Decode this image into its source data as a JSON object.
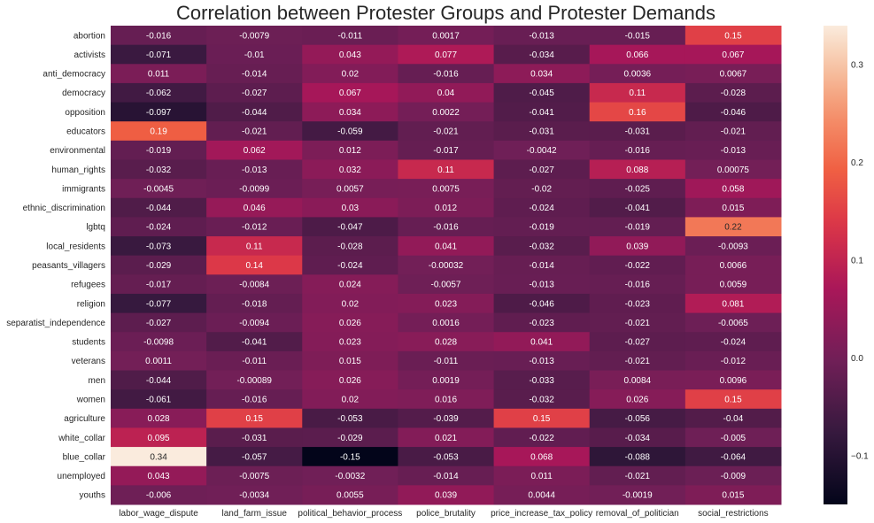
{
  "chart_data": {
    "type": "heatmap",
    "title": "Correlation between Protester Groups and Protester Demands",
    "rows": [
      "abortion",
      "activists",
      "anti_democracy",
      "democracy",
      "opposition",
      "educators",
      "environmental",
      "human_rights",
      "immigrants",
      "ethnic_discrimination",
      "lgbtq",
      "local_residents",
      "peasants_villagers",
      "refugees",
      "religion",
      "separatist_independence",
      "students",
      "veterans",
      "men",
      "women",
      "agriculture",
      "white_collar",
      "blue_collar",
      "unemployed",
      "youths"
    ],
    "columns": [
      "labor_wage_dispute",
      "land_farm_issue",
      "political_behavior_process",
      "police_brutality",
      "price_increase_tax_policy",
      "removal_of_politician",
      "social_restrictions"
    ],
    "values": [
      [
        "-0.016",
        "-0.0079",
        "-0.011",
        "0.0017",
        "-0.013",
        "-0.015",
        "0.15"
      ],
      [
        "-0.071",
        "-0.01",
        "0.043",
        "0.077",
        "-0.034",
        "0.066",
        "0.067"
      ],
      [
        "0.011",
        "-0.014",
        "0.02",
        "-0.016",
        "0.034",
        "0.0036",
        "0.0067"
      ],
      [
        "-0.062",
        "-0.027",
        "0.067",
        "0.04",
        "-0.045",
        "0.11",
        "-0.028"
      ],
      [
        "-0.097",
        "-0.044",
        "0.034",
        "0.0022",
        "-0.041",
        "0.16",
        "-0.046"
      ],
      [
        "0.19",
        "-0.021",
        "-0.059",
        "-0.021",
        "-0.031",
        "-0.031",
        "-0.021"
      ],
      [
        "-0.019",
        "0.062",
        "0.012",
        "-0.017",
        "-0.0042",
        "-0.016",
        "-0.013"
      ],
      [
        "-0.032",
        "-0.013",
        "0.032",
        "0.11",
        "-0.027",
        "0.088",
        "0.00075"
      ],
      [
        "-0.0045",
        "-0.0099",
        "0.0057",
        "0.0075",
        "-0.02",
        "-0.025",
        "0.058"
      ],
      [
        "-0.044",
        "0.046",
        "0.03",
        "0.012",
        "-0.024",
        "-0.041",
        "0.015"
      ],
      [
        "-0.024",
        "-0.012",
        "-0.047",
        "-0.016",
        "-0.019",
        "-0.019",
        "0.22"
      ],
      [
        "-0.073",
        "0.11",
        "-0.028",
        "0.041",
        "-0.032",
        "0.039",
        "-0.0093"
      ],
      [
        "-0.029",
        "0.14",
        "-0.024",
        "-0.00032",
        "-0.014",
        "-0.022",
        "0.0066"
      ],
      [
        "-0.017",
        "-0.0084",
        "0.024",
        "-0.0057",
        "-0.013",
        "-0.016",
        "0.0059"
      ],
      [
        "-0.077",
        "-0.018",
        "0.02",
        "0.023",
        "-0.046",
        "-0.023",
        "0.081"
      ],
      [
        "-0.027",
        "-0.0094",
        "0.026",
        "0.0016",
        "-0.023",
        "-0.021",
        "-0.0065"
      ],
      [
        "-0.0098",
        "-0.041",
        "0.023",
        "0.028",
        "0.041",
        "-0.027",
        "-0.024"
      ],
      [
        "0.0011",
        "-0.011",
        "0.015",
        "-0.011",
        "-0.013",
        "-0.021",
        "-0.012"
      ],
      [
        "-0.044",
        "-0.00089",
        "0.026",
        "0.0019",
        "-0.033",
        "0.0084",
        "0.0096"
      ],
      [
        "-0.061",
        "-0.016",
        "0.02",
        "0.016",
        "-0.032",
        "0.026",
        "0.15"
      ],
      [
        "0.028",
        "0.15",
        "-0.053",
        "-0.039",
        "0.15",
        "-0.056",
        "-0.04"
      ],
      [
        "0.095",
        "-0.031",
        "-0.029",
        "0.021",
        "-0.022",
        "-0.034",
        "-0.005"
      ],
      [
        "0.34",
        "-0.057",
        "-0.15",
        "-0.053",
        "0.068",
        "-0.088",
        "-0.064"
      ],
      [
        "0.043",
        "-0.0075",
        "-0.0032",
        "-0.014",
        "0.011",
        "-0.021",
        "-0.009"
      ],
      [
        "-0.006",
        "-0.0034",
        "0.0055",
        "0.039",
        "0.0044",
        "-0.0019",
        "0.015"
      ]
    ],
    "vmin": -0.15,
    "vmax": 0.34,
    "colormap": "rocket",
    "colorbar_ticks": [
      -0.1,
      0.0,
      0.1,
      0.2,
      0.3
    ],
    "colorbar_tick_labels": [
      "−0.1",
      "0.0",
      "0.1",
      "0.2",
      "0.3"
    ]
  }
}
